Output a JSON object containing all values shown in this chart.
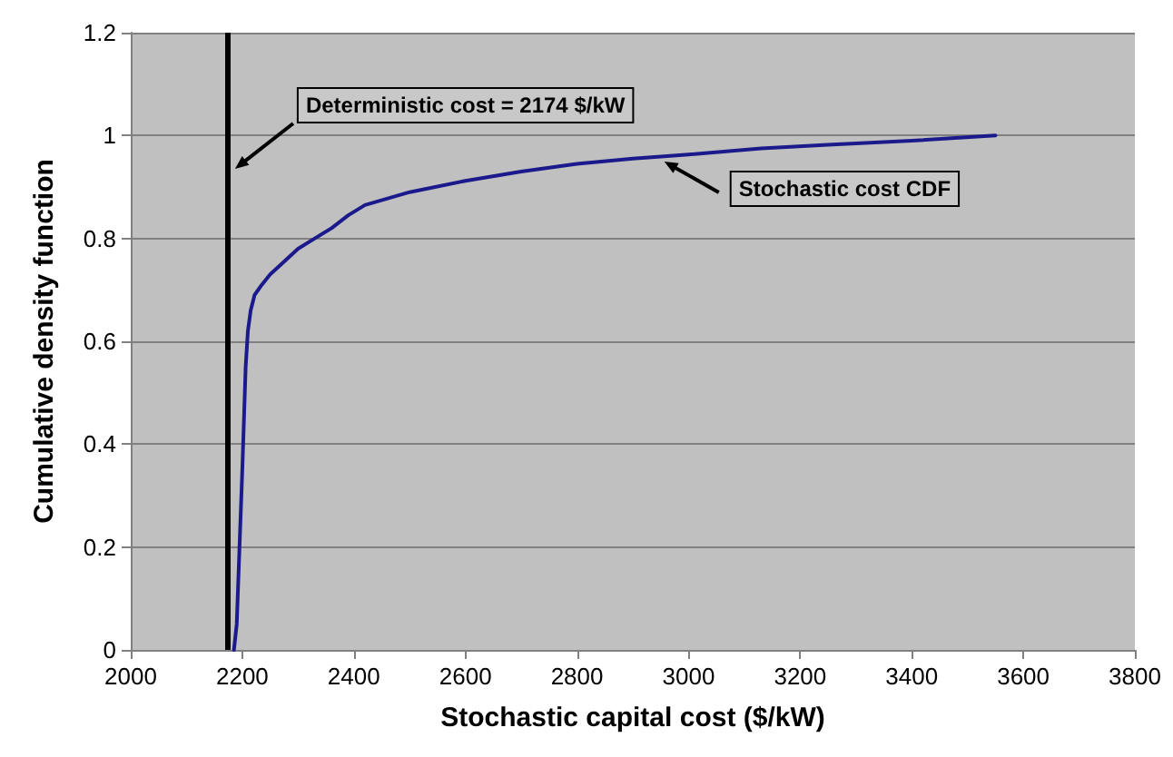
{
  "chart_data": {
    "type": "line",
    "xlabel": "Stochastic capital cost ($/kW)",
    "ylabel": "Cumulative density function",
    "xlim": [
      2000,
      3800
    ],
    "xticks": [
      2000,
      2200,
      2400,
      2600,
      2800,
      3000,
      3200,
      3400,
      3600,
      3800
    ],
    "ylim": [
      0,
      1.2
    ],
    "yticks": [
      0,
      0.2,
      0.4,
      0.6,
      0.8,
      1,
      1.2
    ],
    "grid": "y",
    "marker": "none",
    "line_style": "solid",
    "series": [
      {
        "color": "#1a1a8c",
        "x": [
          2185,
          2190,
          2195,
          2200,
          2203,
          2206,
          2210,
          2215,
          2222,
          2235,
          2250,
          2270,
          2300,
          2330,
          2360,
          2390,
          2420,
          2500,
          2600,
          2700,
          2800,
          2900,
          3000,
          3130,
          3250,
          3400,
          3550
        ],
        "values": [
          0,
          0.05,
          0.2,
          0.35,
          0.45,
          0.55,
          0.62,
          0.66,
          0.69,
          0.71,
          0.73,
          0.75,
          0.78,
          0.8,
          0.82,
          0.845,
          0.865,
          0.89,
          0.912,
          0.93,
          0.945,
          0.955,
          0.963,
          0.975,
          0.982,
          0.99,
          1.0
        ]
      }
    ],
    "ref_lines": [
      {
        "axis": "x",
        "value": 2174,
        "label": "Deterministic cost = 2174 $/kW",
        "color": "#000000"
      }
    ],
    "annotations": [
      {
        "text": "Stochastic cost CDF",
        "x": 2950,
        "y": 0.96
      }
    ]
  }
}
